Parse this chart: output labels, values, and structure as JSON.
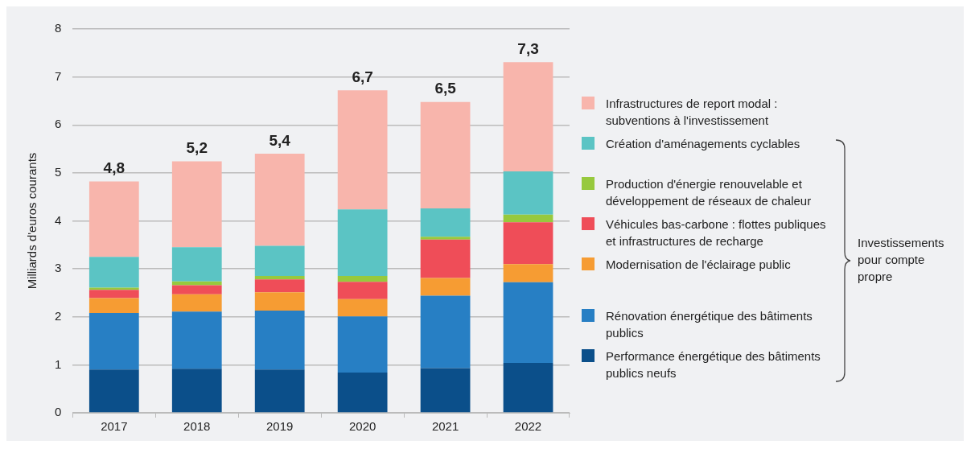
{
  "chart_data": {
    "type": "bar",
    "stacked": true,
    "ylabel": "Milliards d'euros courants",
    "categories": [
      "2017",
      "2018",
      "2019",
      "2020",
      "2021",
      "2022"
    ],
    "series": [
      {
        "name": "Performance énergétique des bâtiments publics neufs",
        "color": "#0b4f8a",
        "values": [
          0.9,
          0.92,
          0.9,
          0.84,
          0.93,
          1.04
        ]
      },
      {
        "name": "Rénovation énergétique des bâtiments publics",
        "color": "#277fc4",
        "values": [
          1.18,
          1.19,
          1.23,
          1.17,
          1.51,
          1.68
        ]
      },
      {
        "name": "Modernisation de l'éclairage public",
        "color": "#f69c33",
        "values": [
          0.31,
          0.36,
          0.38,
          0.36,
          0.37,
          0.38
        ]
      },
      {
        "name": "Véhicules bas-carbone : flottes publiques et infrastructures de recharge",
        "color": "#ef4d58",
        "values": [
          0.17,
          0.19,
          0.27,
          0.36,
          0.8,
          0.87
        ]
      },
      {
        "name": "Production d'énergie renouvelable et développement de réseaux de chaleur",
        "color": "#97c93d",
        "values": [
          0.05,
          0.08,
          0.07,
          0.12,
          0.06,
          0.16
        ]
      },
      {
        "name": "Création d'aménagements cyclables",
        "color": "#5bc4c4",
        "values": [
          0.64,
          0.71,
          0.63,
          1.39,
          0.59,
          0.9
        ]
      },
      {
        "name": "Infrastructures de report modal : subventions à l'investissement",
        "color": "#f8b5ac",
        "values": [
          1.57,
          1.79,
          1.92,
          2.48,
          2.22,
          2.28
        ]
      }
    ],
    "totals": [
      "4,8",
      "5,2",
      "5,4",
      "6,7",
      "6,5",
      "7,3"
    ],
    "ylim": [
      0,
      8
    ],
    "yticks": [
      0,
      1,
      2,
      3,
      4,
      5,
      6,
      7,
      8
    ],
    "grid": "y",
    "legend": "right",
    "annotations": [
      "Investissements pour compte propre"
    ]
  }
}
